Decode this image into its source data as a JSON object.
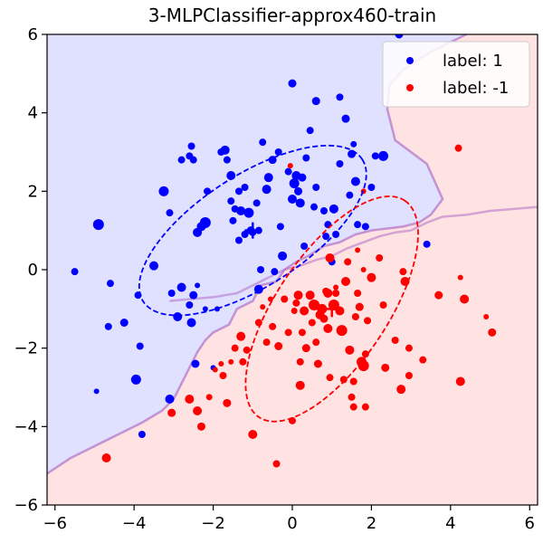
{
  "chart_data": {
    "type": "scatter",
    "title": "3-MLPClassifier-approx460-train",
    "xlim": [
      -6.2,
      6.2
    ],
    "ylim": [
      -6,
      6
    ],
    "xticks": [
      -6,
      -4,
      -2,
      0,
      2,
      4,
      6
    ],
    "yticks": [
      -6,
      -4,
      -2,
      0,
      2,
      4,
      6
    ],
    "grid": false,
    "legend_position": "top-right",
    "legend": [
      "label: 1",
      "label: -1"
    ],
    "region_colors": {
      "positive": "#e0e0ff",
      "negative": "#ffe2e2",
      "boundary": "#b070c8"
    },
    "decision_boundary": [
      [
        -6.2,
        -5.2
      ],
      [
        -5.6,
        -4.8
      ],
      [
        -5.0,
        -4.5
      ],
      [
        -4.4,
        -4.2
      ],
      [
        -3.8,
        -3.9
      ],
      [
        -3.3,
        -3.6
      ],
      [
        -3.0,
        -3.3
      ],
      [
        -2.8,
        -2.9
      ],
      [
        -2.6,
        -2.5
      ],
      [
        -2.4,
        -2.1
      ],
      [
        -2.2,
        -1.8
      ],
      [
        -2.0,
        -1.6
      ],
      [
        -1.6,
        -1.4
      ],
      [
        -1.4,
        -1.0
      ],
      [
        -1.0,
        -0.8
      ],
      [
        -0.8,
        -0.4
      ],
      [
        -0.4,
        -0.3
      ],
      [
        -0.2,
        0.0
      ],
      [
        0.1,
        0.2
      ],
      [
        0.4,
        0.35
      ],
      [
        0.8,
        0.6
      ],
      [
        1.2,
        0.7
      ],
      [
        1.6,
        0.9
      ],
      [
        2.0,
        1.0
      ],
      [
        2.4,
        1.05
      ],
      [
        2.8,
        1.1
      ],
      [
        3.2,
        1.2
      ],
      [
        3.5,
        1.4
      ],
      [
        3.8,
        1.8
      ],
      [
        3.4,
        2.7
      ],
      [
        3.0,
        3.0
      ],
      [
        2.6,
        3.3
      ],
      [
        2.5,
        3.7
      ],
      [
        2.4,
        4.1
      ],
      [
        2.45,
        4.7
      ],
      [
        2.8,
        5.1
      ],
      [
        3.4,
        5.5
      ],
      [
        4.4,
        6.0
      ]
    ],
    "secondary_boundary": [
      [
        -3.1,
        -0.8
      ],
      [
        -2.6,
        -0.75
      ],
      [
        -2.0,
        -0.7
      ],
      [
        -1.4,
        -0.6
      ],
      [
        -1.0,
        -0.4
      ],
      [
        -0.6,
        -0.2
      ],
      [
        -0.2,
        0.0
      ],
      [
        0.2,
        0.1
      ],
      [
        0.6,
        0.25
      ],
      [
        1.0,
        0.35
      ],
      [
        1.4,
        0.55
      ],
      [
        1.8,
        0.7
      ],
      [
        2.2,
        0.85
      ],
      [
        2.6,
        0.95
      ],
      [
        3.0,
        1.0
      ],
      [
        3.4,
        1.2
      ],
      [
        3.8,
        1.35
      ],
      [
        4.4,
        1.4
      ],
      [
        5.0,
        1.5
      ],
      [
        5.6,
        1.55
      ],
      [
        6.2,
        1.6
      ]
    ],
    "ellipses": [
      {
        "name": "label: 1",
        "cx": -1.0,
        "cy": 1.0,
        "rx": 3.3,
        "ry": 1.4,
        "angle_deg": 33,
        "color": "#0000ff"
      },
      {
        "name": "label: -1",
        "cx": 1.0,
        "cy": -1.0,
        "rx": 3.3,
        "ry": 1.4,
        "angle_deg": 56,
        "color": "#ff0000"
      }
    ],
    "centers": [
      {
        "x": -1.0,
        "y": 1.0,
        "color": "#0000ff"
      },
      {
        "x": 1.0,
        "y": -1.0,
        "color": "#ff0000"
      }
    ],
    "series": [
      {
        "name": "label: 1",
        "color": "#0000ff",
        "points": [
          [
            -5.5,
            -0.05,
            4
          ],
          [
            -4.9,
            1.15,
            6
          ],
          [
            -4.95,
            -3.1,
            3
          ],
          [
            -4.65,
            -1.45,
            4
          ],
          [
            -4.6,
            -0.35,
            4
          ],
          [
            -4.25,
            -1.35,
            4.5
          ],
          [
            -3.9,
            -0.65,
            4
          ],
          [
            -3.95,
            -2.8,
            5.5
          ],
          [
            -3.85,
            -1.95,
            4
          ],
          [
            -3.8,
            -4.2,
            4
          ],
          [
            -3.5,
            0.1,
            5
          ],
          [
            -3.25,
            2.0,
            5.5
          ],
          [
            -3.1,
            1.45,
            4
          ],
          [
            -3.05,
            -0.6,
            4
          ],
          [
            -3.1,
            -3.3,
            5
          ],
          [
            -2.9,
            -1.2,
            5
          ],
          [
            -2.8,
            -0.45,
            5
          ],
          [
            -2.8,
            2.8,
            4
          ],
          [
            -2.6,
            2.9,
            4
          ],
          [
            -2.55,
            3.15,
            4
          ],
          [
            -2.5,
            2.8,
            4
          ],
          [
            -2.55,
            -1.35,
            5
          ],
          [
            -2.6,
            -0.9,
            4
          ],
          [
            -2.5,
            -0.65,
            4.5
          ],
          [
            -2.4,
            -0.4,
            3
          ],
          [
            -2.45,
            -2.4,
            4.5
          ],
          [
            -2.4,
            0.95,
            5
          ],
          [
            -2.3,
            1.1,
            5
          ],
          [
            -2.2,
            1.2,
            6
          ],
          [
            -2.15,
            2.0,
            4
          ],
          [
            -2.2,
            -1.0,
            3
          ],
          [
            -2.0,
            -2.5,
            3
          ],
          [
            -1.9,
            -1.0,
            3
          ],
          [
            -1.8,
            3.0,
            4
          ],
          [
            -1.7,
            3.05,
            5
          ],
          [
            -1.65,
            2.8,
            4
          ],
          [
            -1.55,
            2.4,
            5
          ],
          [
            -1.55,
            1.75,
            4
          ],
          [
            -1.5,
            1.25,
            4
          ],
          [
            -1.45,
            1.55,
            4
          ],
          [
            -1.35,
            2.0,
            4
          ],
          [
            -1.3,
            1.5,
            5
          ],
          [
            -1.35,
            0.75,
            4
          ],
          [
            -1.2,
            2.1,
            4
          ],
          [
            -1.2,
            0.9,
            4
          ],
          [
            -1.1,
            1.45,
            5.5
          ],
          [
            -1.05,
            1.0,
            4.5
          ],
          [
            -1.0,
            0.95,
            4
          ],
          [
            -0.9,
            1.7,
            4
          ],
          [
            -0.85,
            1.0,
            4
          ],
          [
            -0.85,
            -0.5,
            5
          ],
          [
            -0.8,
            0.0,
            4
          ],
          [
            -0.75,
            3.25,
            4
          ],
          [
            -0.65,
            2.05,
            5
          ],
          [
            -0.6,
            2.35,
            5
          ],
          [
            -0.5,
            2.8,
            4.5
          ],
          [
            -0.45,
            -0.05,
            4
          ],
          [
            -0.35,
            3.0,
            4
          ],
          [
            -0.3,
            1.1,
            4
          ],
          [
            -0.25,
            0.35,
            5
          ],
          [
            -0.1,
            2.5,
            4
          ],
          [
            0.0,
            4.75,
            4.5
          ],
          [
            0.0,
            1.8,
            5
          ],
          [
            0.05,
            2.2,
            5.5
          ],
          [
            0.1,
            2.4,
            5
          ],
          [
            0.15,
            2.0,
            4.5
          ],
          [
            0.2,
            1.7,
            5
          ],
          [
            0.25,
            2.35,
            4.5
          ],
          [
            0.3,
            0.6,
            4
          ],
          [
            0.35,
            2.85,
            4
          ],
          [
            0.45,
            3.55,
            4
          ],
          [
            0.55,
            1.6,
            4
          ],
          [
            0.6,
            2.1,
            4
          ],
          [
            0.6,
            4.3,
            4.5
          ],
          [
            0.8,
            1.5,
            4
          ],
          [
            0.85,
            0.85,
            4
          ],
          [
            0.9,
            1.15,
            4
          ],
          [
            1.0,
            0.2,
            4
          ],
          [
            1.05,
            1.55,
            5
          ],
          [
            1.1,
            0.9,
            4
          ],
          [
            1.2,
            2.7,
            4
          ],
          [
            1.2,
            4.4,
            4
          ],
          [
            1.35,
            3.85,
            4.5
          ],
          [
            1.45,
            1.9,
            4
          ],
          [
            1.5,
            2.95,
            4.5
          ],
          [
            1.6,
            2.25,
            5
          ],
          [
            1.55,
            3.2,
            3.5
          ],
          [
            1.65,
            1.15,
            4
          ],
          [
            1.85,
            1.1,
            4
          ],
          [
            2.0,
            2.1,
            4
          ],
          [
            2.1,
            2.9,
            4
          ],
          [
            2.3,
            2.9,
            5.5
          ],
          [
            2.7,
            6.0,
            4.5
          ],
          [
            3.4,
            0.65,
            4
          ]
        ]
      },
      {
        "name": "label: -1",
        "color": "#ff0000",
        "points": [
          [
            -4.7,
            -4.8,
            5
          ],
          [
            -3.05,
            -3.65,
            4.5
          ],
          [
            -2.6,
            -3.3,
            5
          ],
          [
            -2.4,
            -3.6,
            5
          ],
          [
            -2.3,
            -4.0,
            4.5
          ],
          [
            -2.1,
            -3.25,
            3.5
          ],
          [
            -1.95,
            -2.55,
            3
          ],
          [
            -1.8,
            -2.4,
            3
          ],
          [
            -1.75,
            -2.7,
            4
          ],
          [
            -1.65,
            -3.4,
            4.5
          ],
          [
            -1.55,
            -2.35,
            3
          ],
          [
            -1.45,
            -2.0,
            4
          ],
          [
            -1.3,
            -1.7,
            5
          ],
          [
            -1.25,
            -2.35,
            4
          ],
          [
            -1.15,
            -2.05,
            4
          ],
          [
            -1.0,
            -4.2,
            5
          ],
          [
            -0.85,
            -1.35,
            4
          ],
          [
            -0.75,
            -0.95,
            3
          ],
          [
            -0.65,
            -1.85,
            4
          ],
          [
            -0.5,
            -1.45,
            4
          ],
          [
            -0.4,
            -4.95,
            4
          ],
          [
            -0.35,
            -1.95,
            4.5
          ],
          [
            -0.2,
            -0.75,
            4
          ],
          [
            -0.1,
            -1.6,
            4
          ],
          [
            0.0,
            -3.85,
            4
          ],
          [
            0.05,
            -1.05,
            3.5
          ],
          [
            0.1,
            -0.85,
            4
          ],
          [
            0.15,
            -0.65,
            5
          ],
          [
            0.2,
            -2.35,
            4
          ],
          [
            0.2,
            -2.95,
            5
          ],
          [
            0.25,
            -1.6,
            4
          ],
          [
            0.3,
            -1.05,
            5
          ],
          [
            0.35,
            -2.0,
            4.5
          ],
          [
            0.45,
            -0.65,
            5
          ],
          [
            0.5,
            -1.35,
            4
          ],
          [
            0.55,
            -0.9,
            6
          ],
          [
            0.6,
            -1.85,
            4
          ],
          [
            0.65,
            -2.4,
            4.5
          ],
          [
            0.7,
            -1.15,
            5
          ],
          [
            0.75,
            -1.0,
            5.5
          ],
          [
            0.8,
            -1.25,
            4.5
          ],
          [
            0.85,
            -0.55,
            4
          ],
          [
            0.9,
            -0.6,
            5
          ],
          [
            0.9,
            -1.5,
            5
          ],
          [
            0.95,
            -2.75,
            4
          ],
          [
            0.95,
            0.3,
            5
          ],
          [
            1.05,
            -0.9,
            6
          ],
          [
            1.1,
            -0.6,
            4
          ],
          [
            1.2,
            -1.05,
            5
          ],
          [
            1.25,
            -1.55,
            6
          ],
          [
            1.3,
            -2.8,
            4
          ],
          [
            1.35,
            -0.3,
            5
          ],
          [
            1.4,
            0.2,
            4
          ],
          [
            1.45,
            -2.05,
            5
          ],
          [
            1.5,
            -3.25,
            4
          ],
          [
            1.55,
            -2.85,
            4
          ],
          [
            1.55,
            -3.5,
            4
          ],
          [
            1.6,
            -1.2,
            4
          ],
          [
            1.65,
            -0.6,
            4
          ],
          [
            1.7,
            -0.95,
            4.5
          ],
          [
            1.75,
            -2.35,
            5.5
          ],
          [
            1.8,
            -2.45,
            6
          ],
          [
            1.85,
            -3.5,
            4
          ],
          [
            1.85,
            -2.15,
            4
          ],
          [
            1.9,
            -1.3,
            4
          ],
          [
            2.0,
            -0.2,
            5
          ],
          [
            2.3,
            -0.9,
            4
          ],
          [
            2.35,
            -2.5,
            4.5
          ],
          [
            2.6,
            -1.8,
            4
          ],
          [
            2.75,
            -3.05,
            5
          ],
          [
            2.8,
            -0.05,
            4
          ],
          [
            2.85,
            -0.3,
            5
          ],
          [
            2.95,
            -2.0,
            4
          ],
          [
            2.95,
            -2.7,
            4
          ],
          [
            3.3,
            -2.3,
            4
          ],
          [
            3.7,
            -0.65,
            4.5
          ],
          [
            4.25,
            -0.2,
            3
          ],
          [
            4.2,
            3.1,
            4
          ],
          [
            4.25,
            -2.85,
            5
          ],
          [
            4.35,
            -0.75,
            5
          ],
          [
            4.9,
            -1.2,
            3
          ],
          [
            5.05,
            -1.6,
            4.5
          ],
          [
            1.8,
            0.0,
            3
          ],
          [
            -0.55,
            -0.75,
            3
          ],
          [
            -0.05,
            2.65,
            3
          ],
          [
            1.1,
            -0.45,
            3
          ],
          [
            1.65,
            0.5,
            3
          ],
          [
            2.2,
            0.3,
            4
          ],
          [
            1.8,
            2.0,
            3
          ]
        ]
      }
    ]
  }
}
